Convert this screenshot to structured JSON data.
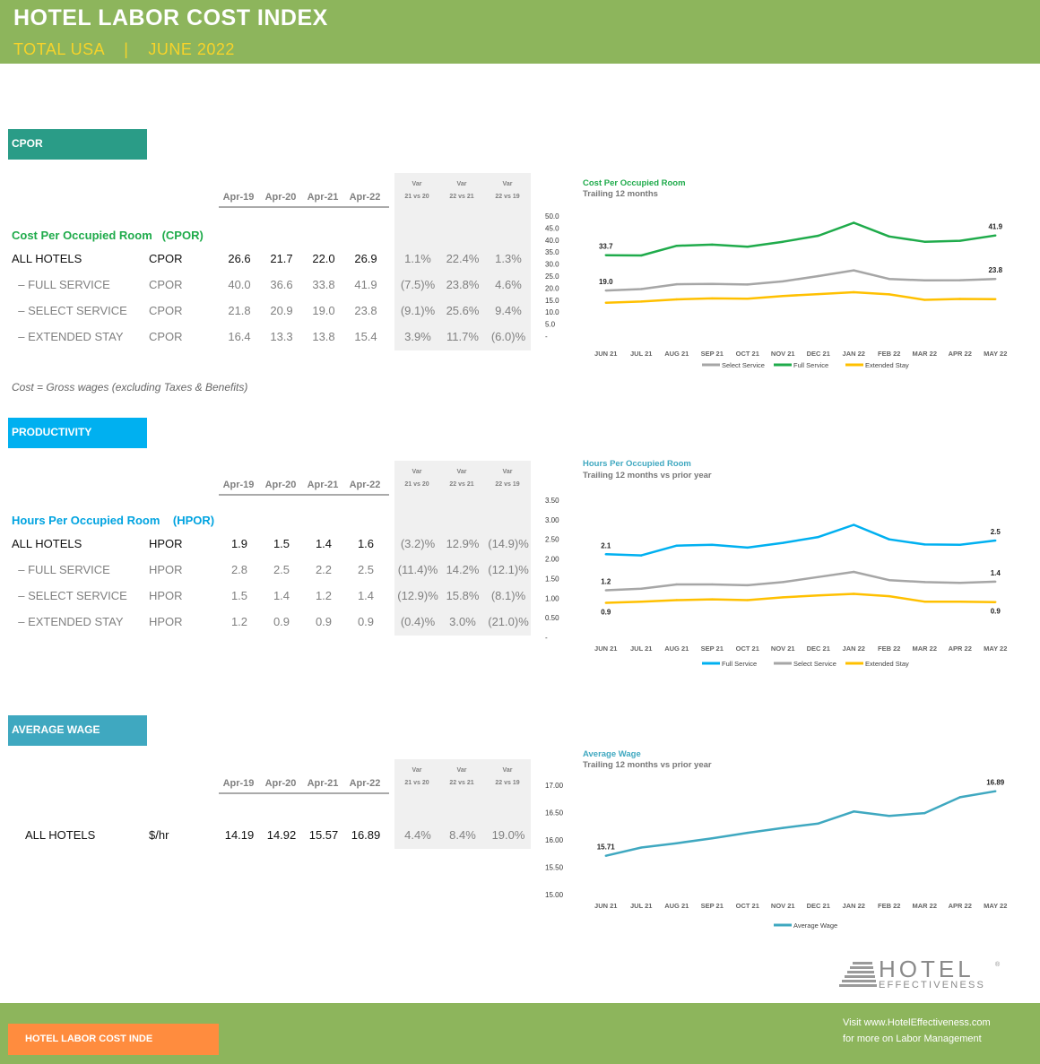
{
  "header": {
    "title": "HOTEL LABOR COST INDEX",
    "subtitle": "TOTAL USA    |    JUNE 2022"
  },
  "periods": [
    "Apr-19",
    "Apr-20",
    "Apr-21",
    "Apr-22"
  ],
  "var_labels": [
    [
      "Var",
      "21 vs 20"
    ],
    [
      "Var",
      "22 vs 21"
    ],
    [
      "Var",
      "22 vs 19"
    ]
  ],
  "cpor": {
    "tab": "CPOR",
    "tab_color": "#2a9c87",
    "metric_title": "Cost Per Occupied Room   (CPOR)",
    "title_color": "#1fab4b",
    "rows": [
      {
        "label": "ALL HOTELS",
        "unit": "CPOR",
        "values": [
          "26.6",
          "21.7",
          "22.0",
          "26.9"
        ],
        "vars": [
          "1.1%",
          "22.4%",
          "1.3%"
        ]
      },
      {
        "label": "  – FULL SERVICE",
        "unit": "CPOR",
        "values": [
          "40.0",
          "36.6",
          "33.8",
          "41.9"
        ],
        "vars": [
          "(7.5)%",
          "23.8%",
          "4.6%"
        ]
      },
      {
        "label": "  – SELECT SERVICE",
        "unit": "CPOR",
        "values": [
          "21.8",
          "20.9",
          "19.0",
          "23.8"
        ],
        "vars": [
          "(9.1)%",
          "25.6%",
          "9.4%"
        ]
      },
      {
        "label": "  – EXTENDED STAY",
        "unit": "CPOR",
        "values": [
          "16.4",
          "13.3",
          "13.8",
          "15.4"
        ],
        "vars": [
          "3.9%",
          "11.7%",
          "(6.0)%"
        ]
      }
    ],
    "note": "Cost = Gross wages (excluding Taxes & Benefits)"
  },
  "productivity": {
    "tab": "PRODUCTIVITY",
    "tab_color": "#00b0f0",
    "metric_title": "Hours Per Occupied Room    (HPOR)",
    "title_color": "#00a3e0",
    "rows": [
      {
        "label": "ALL HOTELS",
        "unit": "HPOR",
        "values": [
          "1.9",
          "1.5",
          "1.4",
          "1.6"
        ],
        "vars": [
          "(3.2)%",
          "12.9%",
          "(14.9)%"
        ]
      },
      {
        "label": "  – FULL SERVICE",
        "unit": "HPOR",
        "values": [
          "2.8",
          "2.5",
          "2.2",
          "2.5"
        ],
        "vars": [
          "(11.4)%",
          "14.2%",
          "(12.1)%"
        ]
      },
      {
        "label": "  – SELECT SERVICE",
        "unit": "HPOR",
        "values": [
          "1.5",
          "1.4",
          "1.2",
          "1.4"
        ],
        "vars": [
          "(12.9)%",
          "15.8%",
          "(8.1)%"
        ]
      },
      {
        "label": "  – EXTENDED STAY",
        "unit": "HPOR",
        "values": [
          "1.2",
          "0.9",
          "0.9",
          "0.9"
        ],
        "vars": [
          "(0.4)%",
          "3.0%",
          "(21.0)%"
        ]
      }
    ]
  },
  "wage": {
    "tab": "AVERAGE WAGE",
    "tab_color": "#3fa8c0",
    "rows": [
      {
        "label": "ALL HOTELS",
        "unit": "$/hr",
        "values": [
          "14.19",
          "14.92",
          "15.57",
          "16.89"
        ],
        "vars": [
          "4.4%",
          "8.4%",
          "19.0%"
        ]
      }
    ]
  },
  "chart_data": [
    {
      "type": "line",
      "title": "Cost Per Occupied Room",
      "subtitle": "Trailing 12 months",
      "title_color": "#1fab4b",
      "categories": [
        "JUN 21",
        "JUL 21",
        "AUG 21",
        "SEP 21",
        "OCT 21",
        "NOV 21",
        "DEC 21",
        "JAN 22",
        "FEB 22",
        "MAR 22",
        "APR 22",
        "MAY 22"
      ],
      "yticks": [
        "50.0",
        "45.0",
        "40.0",
        "35.0",
        "30.0",
        "25.0",
        "20.0",
        "15.0",
        "10.0",
        "5.0",
        "-"
      ],
      "ylim": [
        0,
        50
      ],
      "series": [
        {
          "name": "Select Service",
          "color": "#a6a6a6",
          "values": [
            19.0,
            19.6,
            21.6,
            21.7,
            21.5,
            22.8,
            25.0,
            27.4,
            23.8,
            23.2,
            23.3,
            23.8
          ],
          "labels": [
            "19.0",
            "",
            "",
            "",
            "",
            "",
            "",
            "",
            "",
            "",
            "",
            "23.8"
          ]
        },
        {
          "name": "Full Service",
          "color": "#1fab4b",
          "values": [
            33.7,
            33.6,
            37.6,
            38.1,
            37.2,
            39.3,
            41.8,
            47.2,
            41.5,
            39.3,
            39.7,
            41.9
          ],
          "labels": [
            "33.7",
            "",
            "",
            "",
            "",
            "",
            "",
            "",
            "",
            "",
            "",
            "41.9"
          ]
        },
        {
          "name": "Extended Stay",
          "color": "#ffc000",
          "values": [
            13.9,
            14.4,
            15.3,
            15.7,
            15.6,
            16.7,
            17.5,
            18.3,
            17.4,
            15.1,
            15.5,
            15.4
          ],
          "labels": [
            "",
            "",
            "",
            "",
            "",
            "",
            "",
            "",
            "",
            "",
            "",
            ""
          ]
        }
      ],
      "legend": "bottom"
    },
    {
      "type": "line",
      "title": "Hours Per Occupied Room",
      "subtitle": "Trailing 12 months vs prior year",
      "title_color": "#3fa8c0",
      "categories": [
        "JUN 21",
        "JUL 21",
        "AUG 21",
        "SEP 21",
        "OCT 21",
        "NOV 21",
        "DEC 21",
        "JAN 22",
        "FEB 22",
        "MAR 22",
        "APR 22",
        "MAY 22"
      ],
      "yticks": [
        "3.50",
        "3.00",
        "2.50",
        "2.00",
        "1.50",
        "1.00",
        "0.50",
        "-"
      ],
      "ylim": [
        0,
        3.5
      ],
      "series": [
        {
          "name": "Full Service",
          "color": "#00b0f0",
          "values": [
            2.12,
            2.09,
            2.34,
            2.36,
            2.29,
            2.41,
            2.56,
            2.87,
            2.5,
            2.37,
            2.36,
            2.47
          ],
          "labels": [
            "2.1",
            "",
            "",
            "",
            "",
            "",
            "",
            "",
            "",
            "",
            "",
            "2.5"
          ]
        },
        {
          "name": "Select Service",
          "color": "#a6a6a6",
          "values": [
            1.2,
            1.24,
            1.35,
            1.35,
            1.33,
            1.41,
            1.54,
            1.67,
            1.46,
            1.41,
            1.39,
            1.42
          ],
          "labels": [
            "1.2",
            "",
            "",
            "",
            "",
            "",
            "",
            "",
            "",
            "",
            "",
            "1.4"
          ]
        },
        {
          "name": "Extended Stay",
          "color": "#ffc000",
          "values": [
            0.88,
            0.91,
            0.95,
            0.97,
            0.95,
            1.02,
            1.07,
            1.11,
            1.05,
            0.91,
            0.91,
            0.9
          ],
          "labels": [
            "0.9",
            "",
            "",
            "",
            "",
            "",
            "",
            "",
            "",
            "",
            "",
            "0.9"
          ]
        }
      ],
      "legend": "bottom"
    },
    {
      "type": "line",
      "title": "Average Wage",
      "subtitle": "Trailing 12 months vs prior year",
      "title_color": "#3fa8c0",
      "categories": [
        "JUN 21",
        "JUL 21",
        "AUG 21",
        "SEP 21",
        "OCT 21",
        "NOV 21",
        "DEC 21",
        "JAN 22",
        "FEB 22",
        "MAR 22",
        "APR 22",
        "MAY 22"
      ],
      "yticks": [
        "17.00",
        "16.50",
        "16.00",
        "15.50",
        "15.00"
      ],
      "ylim": [
        15,
        17
      ],
      "series": [
        {
          "name": "Average Wage",
          "color": "#3fa8c0",
          "values": [
            15.71,
            15.86,
            15.94,
            16.03,
            16.13,
            16.22,
            16.3,
            16.52,
            16.44,
            16.49,
            16.78,
            16.89
          ],
          "labels": [
            "15.71",
            "",
            "",
            "",
            "",
            "",
            "",
            "",
            "",
            "",
            "",
            "16.89"
          ]
        }
      ],
      "legend": "bottom"
    }
  ],
  "logo": {
    "line1": "HOTEL",
    "line2": "EFFECTIVENESS",
    "mark": "®"
  },
  "footer": {
    "tab": "HOTEL LABOR COST INDE",
    "line1": "Visit www.HotelEffectiveness.com",
    "line2": "for more on Labor Management"
  }
}
